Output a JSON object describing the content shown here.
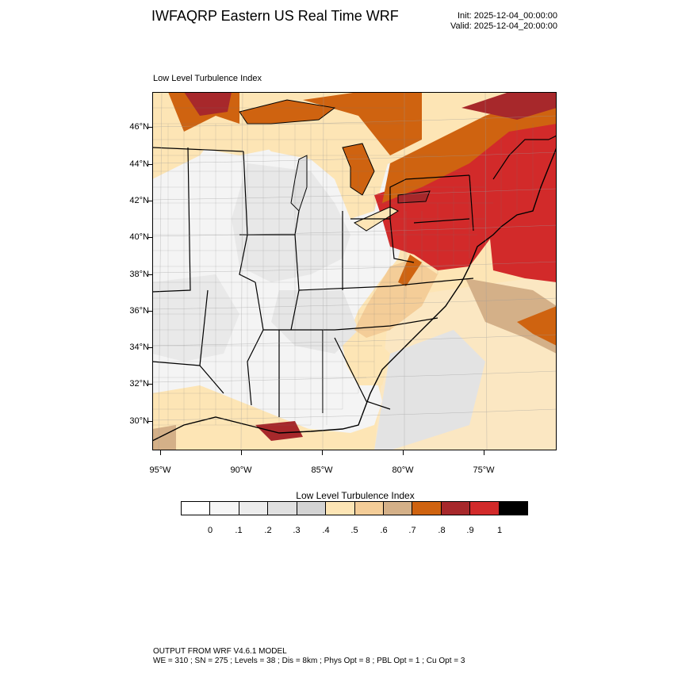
{
  "header": {
    "title": "IWFAQRP Eastern US Real Time WRF",
    "init": "Init: 2025-12-04_00:00:00",
    "valid": "Valid: 2025-12-04_20:00:00"
  },
  "map": {
    "field_label": "Low Level Turbulence Index",
    "latitude_labels": [
      "46°N",
      "44°N",
      "42°N",
      "40°N",
      "38°N",
      "36°N",
      "34°N",
      "32°N",
      "30°N"
    ],
    "longitude_labels": [
      "95°W",
      "90°W",
      "85°W",
      "80°W",
      "75°W"
    ]
  },
  "colorbar": {
    "title": "Low Level Turbulence Index",
    "labels": [
      "0",
      ".1",
      ".2",
      ".3",
      ".4",
      ".5",
      ".6",
      ".7",
      ".8",
      ".9",
      "1"
    ],
    "colors": [
      "#ffffff",
      "#f6f6f6",
      "#ececec",
      "#e0e0e0",
      "#d3d3d3",
      "#fde5b5",
      "#f4cd98",
      "#d4b088",
      "#cf6310",
      "#a7282b",
      "#d22a2a",
      "#000000"
    ]
  },
  "footer": {
    "line1": "OUTPUT FROM WRF V4.6.1 MODEL",
    "line2": "WE = 310 ; SN = 275 ; Levels = 38 ; Dis = 8km ; Phys Opt = 8 ; PBL Opt = 1 ; Cu Opt = 3"
  }
}
